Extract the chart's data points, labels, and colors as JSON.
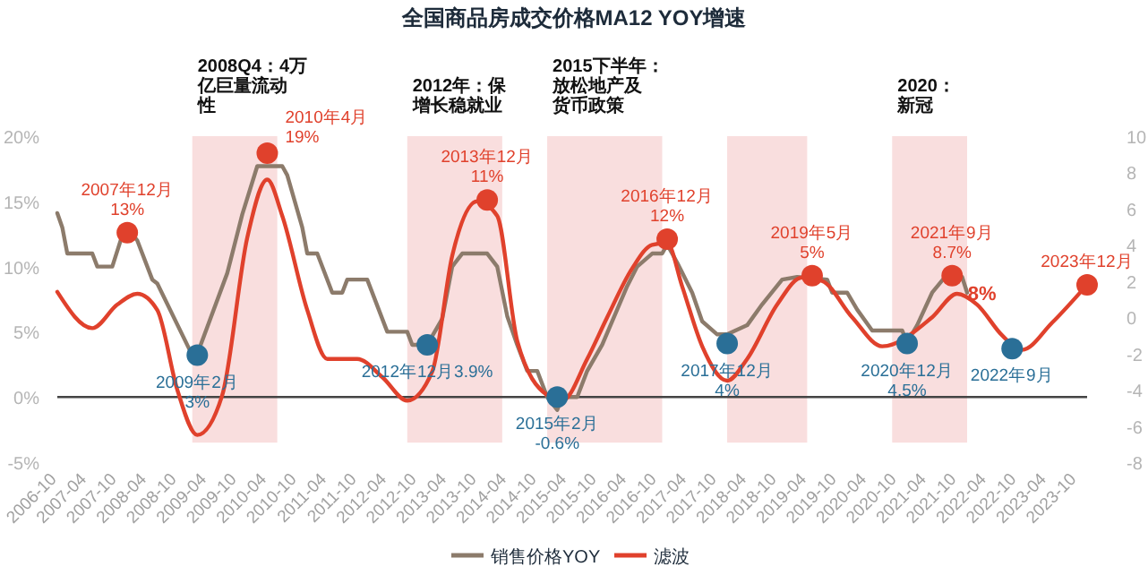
{
  "chart_data": {
    "type": "line",
    "title": "全国商品房成交价格MA12 YOY增速",
    "xlim": [
      "2006-10",
      "2023-12"
    ],
    "xticks": [
      "2006-10",
      "2007-04",
      "2007-10",
      "2008-04",
      "2008-10",
      "2009-04",
      "2009-10",
      "2010-04",
      "2010-10",
      "2011-04",
      "2011-10",
      "2012-04",
      "2012-10",
      "2013-04",
      "2013-10",
      "2014-04",
      "2014-10",
      "2015-04",
      "2015-10",
      "2016-04",
      "2016-10",
      "2017-04",
      "2017-10",
      "2018-04",
      "2018-10",
      "2019-04",
      "2019-10",
      "2020-04",
      "2020-10",
      "2021-04",
      "2021-10",
      "2022-04",
      "2022-10",
      "2023-04",
      "2023-10"
    ],
    "ylim": [
      -5,
      20
    ],
    "yticks": [
      {
        "value": -5,
        "label": "-5%"
      },
      {
        "value": 0,
        "label": "0%"
      },
      {
        "value": 5,
        "label": "5%"
      },
      {
        "value": 10,
        "label": "10%"
      },
      {
        "value": 15,
        "label": "15%"
      },
      {
        "value": 20,
        "label": "20%"
      }
    ],
    "y2lim": [
      -8,
      10
    ],
    "y2ticks": [
      -8,
      -6,
      -4,
      -2,
      0,
      2,
      4,
      6,
      8,
      10
    ],
    "grid": false,
    "legend": "bottom",
    "marker": "none",
    "line_style": "solid",
    "series": [
      {
        "name": "销售价格YOY",
        "type": "line",
        "color": "#8c7b6b",
        "x": [
          "2006-10",
          "2006-11",
          "2006-12",
          "2007-05",
          "2007-06",
          "2007-09",
          "2007-11",
          "2007-12",
          "2008-02",
          "2008-05",
          "2008-06",
          "2009-01",
          "2009-02",
          "2009-08",
          "2009-11",
          "2010-02",
          "2010-07",
          "2010-08",
          "2010-11",
          "2010-12",
          "2011-02",
          "2011-05",
          "2011-07",
          "2011-08",
          "2011-12",
          "2012-04",
          "2012-08",
          "2012-09",
          "2012-12",
          "2013-03",
          "2013-05",
          "2013-07",
          "2013-12",
          "2014-02",
          "2014-04",
          "2014-06",
          "2014-08",
          "2014-10",
          "2014-12",
          "2015-02",
          "2015-03",
          "2015-06",
          "2015-08",
          "2015-11",
          "2016-04",
          "2016-06",
          "2016-09",
          "2016-11",
          "2016-12",
          "2017-02",
          "2017-05",
          "2017-07",
          "2017-10",
          "2017-12",
          "2018-04",
          "2018-07",
          "2018-11",
          "2019-02",
          "2019-08",
          "2019-09",
          "2019-12",
          "2020-02",
          "2020-05",
          "2020-11",
          "2020-12",
          "2021-02",
          "2021-05",
          "2021-08",
          "2021-11",
          "2021-12"
        ],
        "values": [
          14.1,
          13,
          11,
          11,
          10,
          10,
          12.4,
          13,
          12,
          9,
          8.7,
          3.2,
          3.3,
          9.5,
          14,
          17.7,
          17.7,
          17,
          13,
          11,
          11,
          8,
          8,
          9,
          9,
          5,
          5,
          4,
          4,
          6,
          10,
          11,
          11,
          10,
          6.2,
          4,
          2,
          2,
          0,
          -1,
          0,
          0,
          2,
          4,
          8.5,
          10,
          11,
          11,
          11.7,
          10.3,
          8,
          5.8,
          4.8,
          4.8,
          5.5,
          7.1,
          9,
          9.2,
          9,
          8,
          8,
          6.7,
          5.1,
          5.1,
          4.2,
          5.5,
          8,
          9.4,
          9.2,
          8
        ]
      },
      {
        "name": "滤波",
        "type": "line",
        "axis": "y2",
        "color": "#e0412c",
        "x": [
          "2006-10",
          "2007-05",
          "2007-10",
          "2008-02",
          "2008-06",
          "2008-10",
          "2009-02",
          "2009-07",
          "2009-12",
          "2010-04",
          "2010-07",
          "2010-12",
          "2011-04",
          "2011-10",
          "2012-03",
          "2012-08",
          "2013-01",
          "2013-05",
          "2013-10",
          "2014-02",
          "2014-06",
          "2014-12",
          "2015-03",
          "2015-08",
          "2015-12",
          "2016-05",
          "2016-09",
          "2016-12",
          "2017-03",
          "2017-07",
          "2017-12",
          "2018-04",
          "2018-10",
          "2019-03",
          "2019-07",
          "2020-01",
          "2020-07",
          "2021-05",
          "2021-10",
          "2022-02",
          "2022-07",
          "2022-11",
          "2023-05",
          "2023-12"
        ],
        "values": [
          1.4,
          -0.6,
          0.7,
          1.3,
          0.4,
          -4.0,
          -6.5,
          -4.3,
          4.4,
          7.6,
          5.6,
          0.4,
          -2.3,
          -2.3,
          -3.3,
          -4.6,
          -3.0,
          3.4,
          6.4,
          5.6,
          -1.3,
          -4.3,
          -4.6,
          -2.3,
          0.0,
          2.7,
          4.0,
          4.1,
          1.7,
          -1.6,
          -3.5,
          -2.3,
          0.7,
          2.2,
          2.0,
          0.0,
          -1.6,
          0.0,
          1.3,
          0.7,
          -1.0,
          -1.8,
          -0.3,
          1.8
        ]
      },
      {
        "type": "scatter",
        "marker": "circle",
        "color": "#e0412c",
        "x": [
          "2007-12",
          "2010-04",
          "2013-12",
          "2016-12",
          "2019-05",
          "2021-09",
          "2023-12"
        ],
        "values": [
          12.6,
          18.7,
          15.1,
          12.1,
          9.3,
          9.3,
          8.6
        ]
      },
      {
        "type": "scatter",
        "marker": "circle",
        "color": "#2a6f97",
        "x": [
          "2009-02",
          "2012-12",
          "2015-02",
          "2017-12",
          "2020-12",
          "2022-09"
        ],
        "values": [
          3.2,
          4.0,
          0,
          4.1,
          4.1,
          3.7
        ]
      }
    ],
    "bands": [
      {
        "axis": "x",
        "from": "2009-01",
        "to": "2010-06",
        "label": "2008Q4：4万亿巨量流动性",
        "color": "#f9dede"
      },
      {
        "axis": "x",
        "from": "2012-08",
        "to": "2014-03",
        "label": "2012年：保增长稳就业",
        "color": "#f9dede"
      },
      {
        "axis": "x",
        "from": "2014-12",
        "to": "2016-11",
        "label": "2015下半年：放松地产及货币政策",
        "color": "#f9dede"
      },
      {
        "axis": "x",
        "from": "2017-12",
        "to": "2019-04",
        "color": "#f9dede"
      },
      {
        "axis": "x",
        "from": "2020-09",
        "to": "2021-12",
        "label": "2020：新冠",
        "color": "#f9dede"
      }
    ],
    "ref_lines": [
      {
        "axis": "y",
        "value": 0,
        "color": "#444444"
      }
    ],
    "annotations": [
      {
        "text": "2007年12月\n13%",
        "x": "2007-12",
        "y": 12.6
      },
      {
        "text": "2010年4月\n19%",
        "x": "2010-04",
        "y": 18.7
      },
      {
        "text": "2013年12月\n11%",
        "x": "2013-12",
        "y": 15.1
      },
      {
        "text": "2016年12月\n12%",
        "x": "2016-12",
        "y": 12.1
      },
      {
        "text": "2019年5月\n5%",
        "x": "2019-05",
        "y": 9.3
      },
      {
        "text": "2021年9月\n8.7%",
        "x": "2021-09",
        "y": 9.3
      },
      {
        "text": "2023年12月",
        "x": "2023-12",
        "y": 8.6
      },
      {
        "text": "8%",
        "x": "2022-03",
        "y": 8
      },
      {
        "text": "2009年2月\n3%",
        "x": "2009-02",
        "y": 3.2
      },
      {
        "text": "2012年12月3.9%",
        "x": "2012-12",
        "y": 4.0
      },
      {
        "text": "2015年2月\n-0.6%",
        "x": "2015-02",
        "y": 0
      },
      {
        "text": "2017年12月\n4%",
        "x": "2017-12",
        "y": 4.1
      },
      {
        "text": "2020年12月\n4.5%",
        "x": "2020-12",
        "y": 4.1
      },
      {
        "text": "2022年9月",
        "x": "2022-09",
        "y": 3.7
      }
    ]
  }
}
